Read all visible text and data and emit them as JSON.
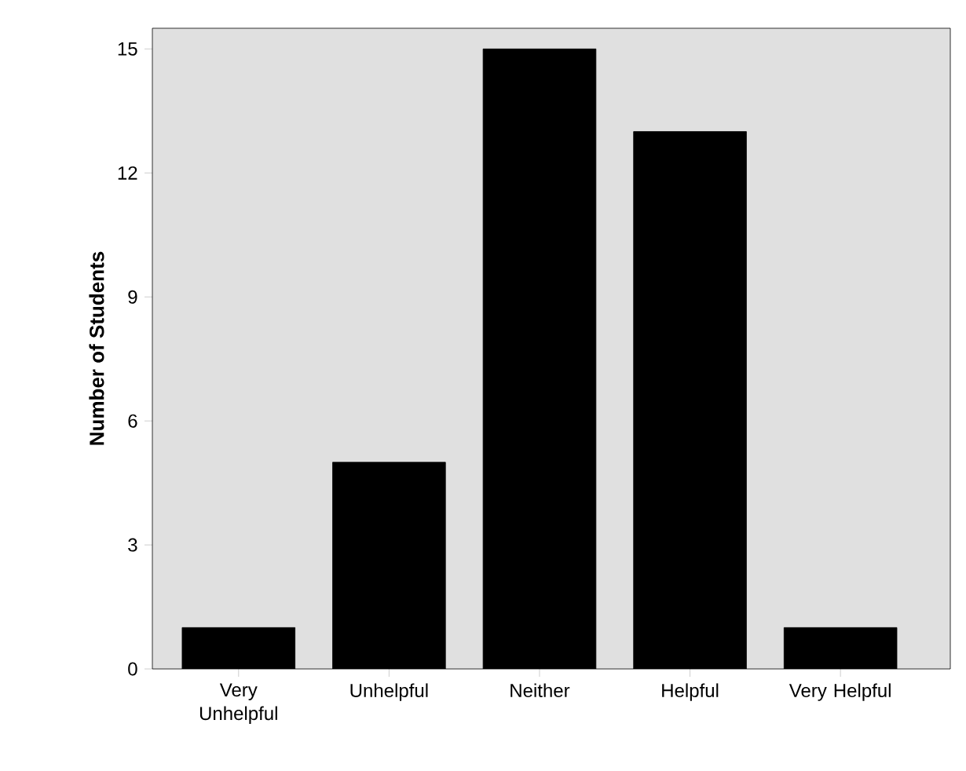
{
  "chart_data": {
    "type": "bar",
    "ylabel": "Number of Students",
    "categories": [
      "Very Unhelpful",
      "Unhelpful",
      "Neither",
      "Helpful",
      "Very Helpful"
    ],
    "values": [
      1,
      5,
      15,
      13,
      1
    ],
    "color": "#000000",
    "ylim": [
      0,
      15.5
    ],
    "yticks": [
      0,
      3,
      6,
      9,
      12,
      15
    ],
    "grid": false
  }
}
